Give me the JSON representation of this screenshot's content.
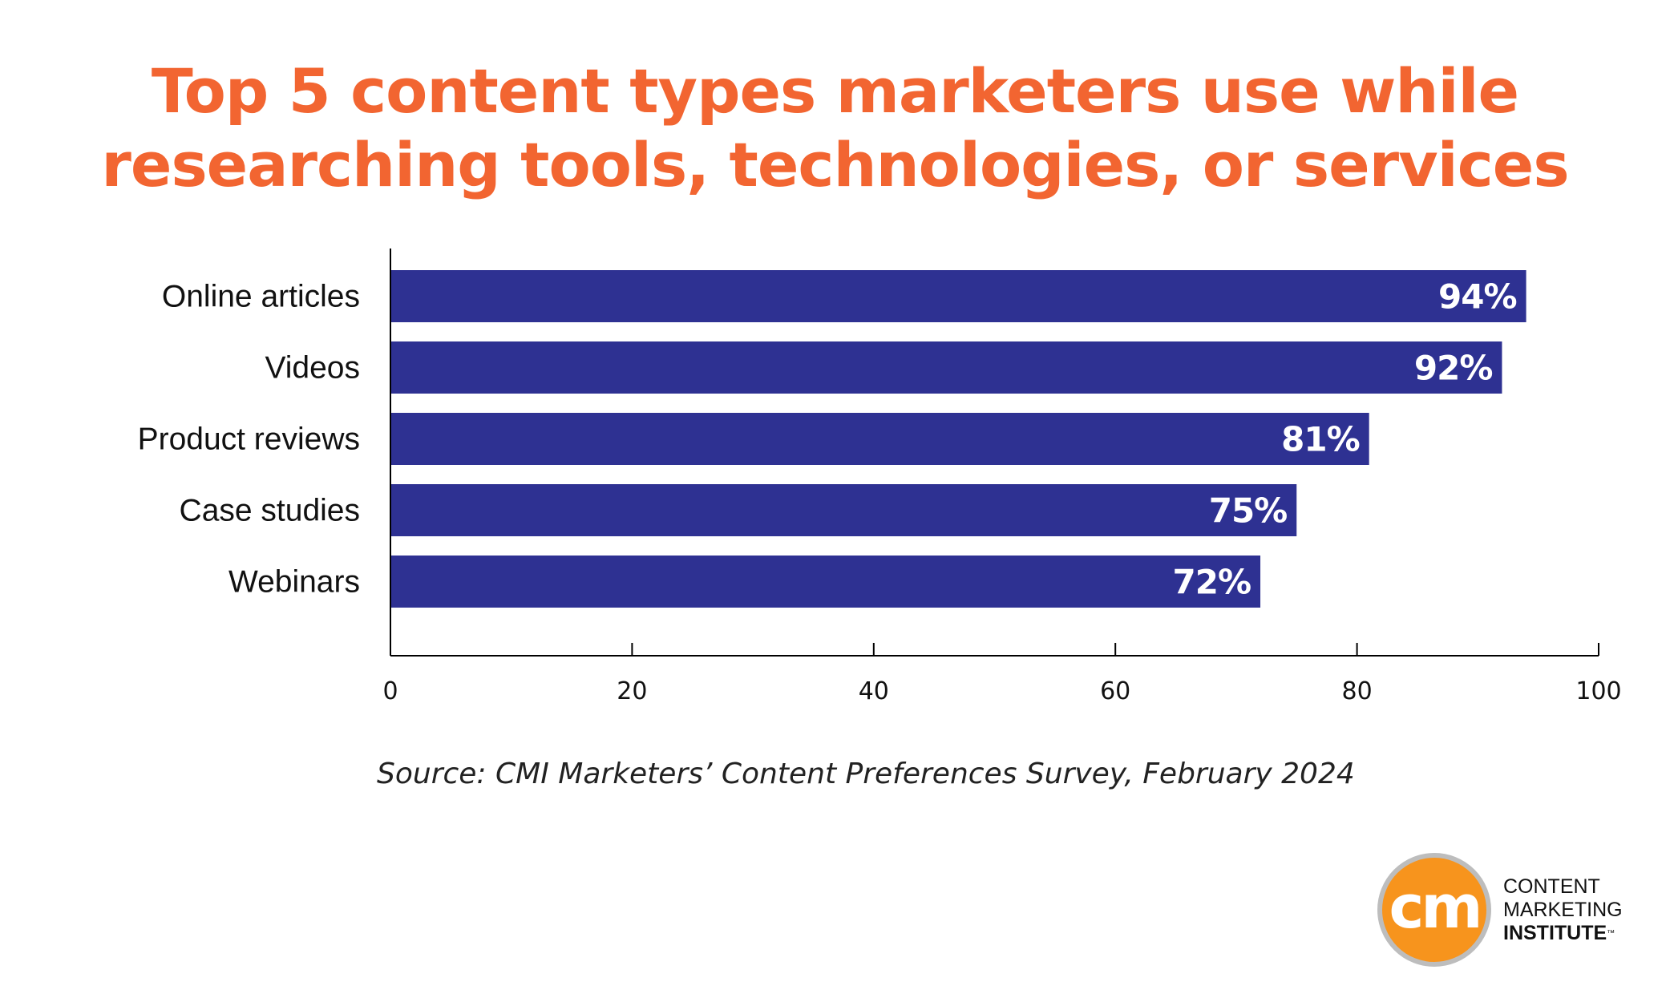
{
  "title": {
    "line1": "Top 5 content types marketers use while",
    "line2": "researching tools, technologies, or services"
  },
  "source": "Source: CMI Marketers’ Content Preferences Survey, February 2024",
  "logo": {
    "mark": "cm",
    "line1": "CONTENT",
    "line2": "MARKETING",
    "line3": "INSTITUTE",
    "tm": "™"
  },
  "colors": {
    "title": "#f26531",
    "bar": "#2e3192",
    "bar_label": "#ffffff",
    "axis": "#000000",
    "text": "#111111"
  },
  "chart_data": {
    "type": "bar",
    "orientation": "horizontal",
    "categories": [
      "Online articles",
      "Videos",
      "Product reviews",
      "Case studies",
      "Webinars"
    ],
    "values": [
      94,
      92,
      81,
      75,
      72
    ],
    "data_labels": [
      "94%",
      "92%",
      "81%",
      "75%",
      "72%"
    ],
    "xlim": [
      0,
      100
    ],
    "xticks": [
      0,
      20,
      40,
      60,
      80,
      100
    ],
    "xtick_labels": [
      "0",
      "20",
      "40",
      "60",
      "80",
      "100"
    ],
    "grid": false,
    "legend": "none"
  }
}
